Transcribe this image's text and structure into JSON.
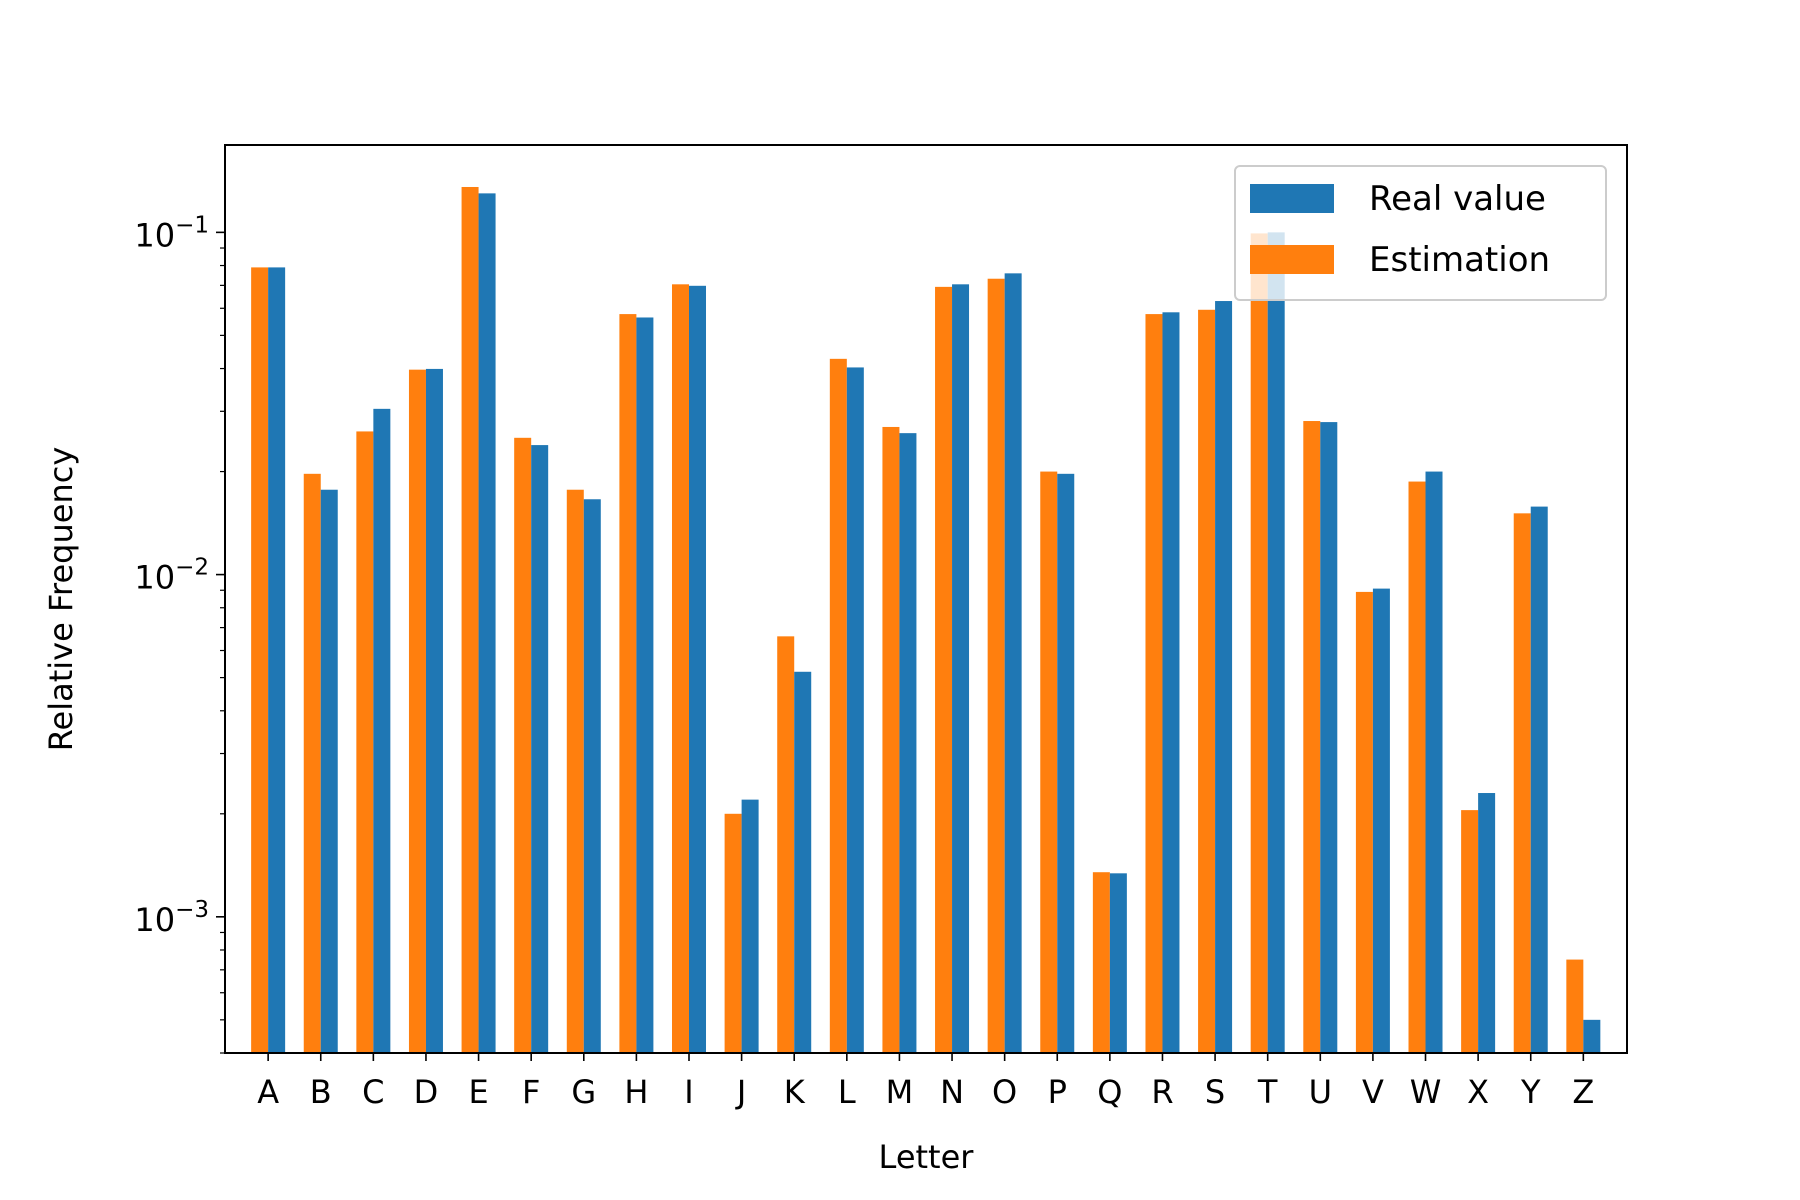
{
  "chart_data": {
    "type": "bar",
    "title": "",
    "xlabel": "Letter",
    "ylabel": "Relative Frequency",
    "yscale": "log",
    "ylim": [
      0.0004,
      0.18
    ],
    "yticks": [
      {
        "value": 0.1,
        "base": "10",
        "exp": "−1"
      },
      {
        "value": 0.01,
        "base": "10",
        "exp": "−2"
      },
      {
        "value": 0.001,
        "base": "10",
        "exp": "−3"
      }
    ],
    "grid": false,
    "legend_position": "top-right",
    "categories": [
      "A",
      "B",
      "C",
      "D",
      "E",
      "F",
      "G",
      "H",
      "I",
      "J",
      "K",
      "L",
      "M",
      "N",
      "O",
      "P",
      "Q",
      "R",
      "S",
      "T",
      "U",
      "V",
      "W",
      "X",
      "Y",
      "Z"
    ],
    "series": [
      {
        "name": "Estimation",
        "color": "#ff7f0e",
        "values": [
          0.079,
          0.0197,
          0.0262,
          0.0397,
          0.1357,
          0.0251,
          0.0177,
          0.0577,
          0.0705,
          0.002,
          0.0066,
          0.0427,
          0.027,
          0.0693,
          0.0732,
          0.02,
          0.00135,
          0.0577,
          0.0594,
          0.0993,
          0.0281,
          0.0089,
          0.0187,
          0.00205,
          0.0151,
          0.00075
        ]
      },
      {
        "name": "Real value",
        "color": "#1f77b4",
        "values": [
          0.079,
          0.0177,
          0.0305,
          0.0399,
          0.13,
          0.0239,
          0.0166,
          0.0564,
          0.0698,
          0.0022,
          0.0052,
          0.0403,
          0.0259,
          0.0705,
          0.0759,
          0.0197,
          0.00134,
          0.0584,
          0.063,
          0.1,
          0.0279,
          0.0091,
          0.02,
          0.0023,
          0.0158,
          0.0005
        ]
      }
    ],
    "legend": [
      {
        "label": "Real value",
        "color": "#1f77b4"
      },
      {
        "label": "Estimation",
        "color": "#ff7f0e"
      }
    ]
  }
}
